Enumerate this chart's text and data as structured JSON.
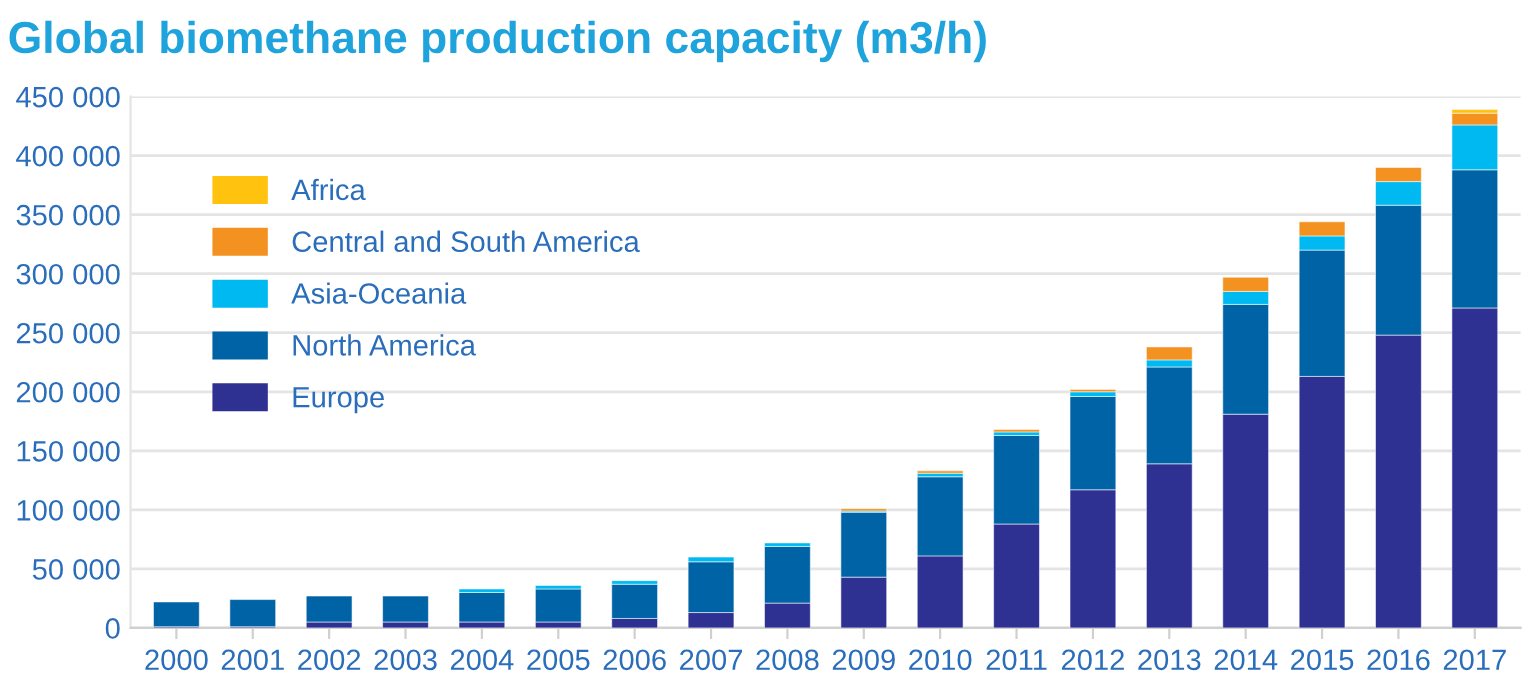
{
  "chart_data": {
    "type": "bar",
    "stacked": true,
    "title": "Global biomethane production capacity (m3/h)",
    "categories": [
      "2000",
      "2001",
      "2002",
      "2003",
      "2004",
      "2005",
      "2006",
      "2007",
      "2008",
      "2009",
      "2010",
      "2011",
      "2012",
      "2013",
      "2014",
      "2015",
      "2016",
      "2017"
    ],
    "series": [
      {
        "name": "Europe",
        "color": "#2e3192",
        "values": [
          1000,
          1000,
          5000,
          5000,
          5000,
          5000,
          8000,
          13000,
          21000,
          43000,
          61000,
          88000,
          117000,
          139000,
          181000,
          213000,
          248000,
          271000
        ]
      },
      {
        "name": "North America",
        "color": "#0063a6",
        "values": [
          21000,
          23000,
          22000,
          22000,
          25000,
          28000,
          29000,
          43000,
          48000,
          55000,
          67000,
          75000,
          79000,
          82000,
          93000,
          107000,
          110000,
          117000
        ]
      },
      {
        "name": "Asia-Oceania",
        "color": "#00b9f1",
        "values": [
          null,
          null,
          null,
          null,
          3000,
          3000,
          3000,
          4000,
          3000,
          1000,
          3000,
          3000,
          4000,
          6000,
          11000,
          12000,
          20000,
          38000
        ]
      },
      {
        "name": "Central and South America",
        "color": "#f39221",
        "values": [
          null,
          null,
          null,
          null,
          null,
          null,
          null,
          null,
          null,
          2000,
          2000,
          2000,
          2000,
          11000,
          12000,
          12000,
          12000,
          10000
        ]
      },
      {
        "name": "Africa",
        "color": "#ffc20e",
        "values": [
          null,
          null,
          null,
          null,
          null,
          null,
          null,
          null,
          null,
          null,
          null,
          null,
          null,
          null,
          null,
          null,
          null,
          3000
        ]
      }
    ],
    "ylim": [
      0,
      450000
    ],
    "yticks": [
      {
        "value": 0,
        "label": "0"
      },
      {
        "value": 50000,
        "label": "50 000"
      },
      {
        "value": 100000,
        "label": "100 000"
      },
      {
        "value": 150000,
        "label": "150 000"
      },
      {
        "value": 200000,
        "label": "200 000"
      },
      {
        "value": 250000,
        "label": "250 000"
      },
      {
        "value": 300000,
        "label": "300 000"
      },
      {
        "value": 350000,
        "label": "350 000"
      },
      {
        "value": 400000,
        "label": "400 000"
      },
      {
        "value": 450000,
        "label": "450 000"
      }
    ],
    "grid": "y",
    "legend": "top left"
  }
}
